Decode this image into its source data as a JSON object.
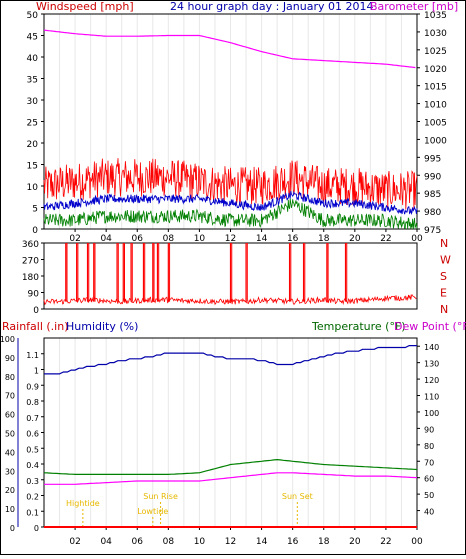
{
  "colors": {
    "wind": "#ff0000",
    "gust": "#ff0000",
    "avg_wind": "#0000cc",
    "min_wind": "#008000",
    "barometer": "#ff00ff",
    "direction": "#ff0000",
    "rain": "#ff0000",
    "humidity": "#0000aa",
    "temperature": "#008000",
    "dewpoint": "#ff00ff",
    "sun": "#e6b800",
    "tide": "#e6b800",
    "axis_text": "#000000"
  },
  "chart_data": [
    {
      "type": "line",
      "name": "wind-barometer",
      "title": "24 hour graph day : January 01 2014",
      "ylabel_left": "Windspeed [mph]",
      "ylabel_right": "Barometer [mb]",
      "x_ticks": [
        "02",
        "04",
        "06",
        "08",
        "10",
        "12",
        "14",
        "16",
        "18",
        "20",
        "22",
        "00"
      ],
      "left_ticks": [
        0,
        5,
        10,
        15,
        20,
        25,
        30,
        35,
        40,
        45,
        50
      ],
      "right_ticks": [
        975,
        980,
        985,
        990,
        995,
        1000,
        1005,
        1010,
        1015,
        1020,
        1025,
        1030,
        1035
      ],
      "left_ylim": [
        0,
        50
      ],
      "right_ylim": [
        975,
        1035
      ],
      "series": [
        {
          "axis": "right",
          "x": [
            0,
            2,
            4,
            6,
            8,
            10,
            12,
            14,
            16,
            18,
            20,
            22,
            24
          ],
          "values": [
            1030.5,
            1029.5,
            1028.8,
            1028.8,
            1029.0,
            1029.0,
            1027.0,
            1024.5,
            1022.5,
            1022.0,
            1021.5,
            1021.0,
            1020.0
          ]
        },
        {
          "axis": "left",
          "x": [
            0,
            2,
            4,
            6,
            8,
            10,
            12,
            14,
            16,
            18,
            20,
            22,
            24
          ],
          "values": [
            10,
            11,
            12,
            12,
            12,
            11,
            10,
            10,
            12,
            10,
            10,
            9,
            9
          ]
        },
        {
          "axis": "left",
          "x": [
            0,
            2,
            4,
            6,
            8,
            10,
            12,
            14,
            16,
            18,
            20,
            22,
            24
          ],
          "values": [
            5,
            6,
            7,
            7,
            7,
            7,
            6,
            5,
            8,
            6,
            6,
            5,
            4
          ]
        },
        {
          "axis": "left",
          "x": [
            0,
            2,
            4,
            6,
            8,
            10,
            12,
            14,
            16,
            18,
            20,
            22,
            24
          ],
          "values": [
            2,
            2,
            3,
            3,
            3,
            3,
            2,
            2,
            6,
            2,
            2,
            2,
            1
          ]
        }
      ]
    },
    {
      "type": "line",
      "name": "wind-direction",
      "y_ticks": [
        0,
        90,
        180,
        270,
        360
      ],
      "compass": [
        "N",
        "W",
        "S",
        "E",
        "N"
      ],
      "ylim": [
        0,
        360
      ],
      "x": [
        0,
        1,
        2,
        3,
        4,
        5,
        6,
        7,
        8,
        9,
        10,
        11,
        12,
        13,
        14,
        15,
        16,
        17,
        18,
        19,
        20,
        21,
        22,
        23,
        24
      ],
      "values": [
        40,
        40,
        45,
        50,
        45,
        40,
        45,
        50,
        50,
        45,
        45,
        40,
        40,
        40,
        50,
        45,
        40,
        45,
        50,
        40,
        45,
        50,
        60,
        60,
        65
      ],
      "spike_hours": [
        1.4,
        2.1,
        2.8,
        3.2,
        4.7,
        5.1,
        5.6,
        6.4,
        7.0,
        7.3,
        8.0,
        12.0,
        13.0,
        15.8,
        16.7,
        18.2,
        19.4
      ]
    },
    {
      "type": "line",
      "name": "rain-humidity-temperature",
      "ylabel_rain": "Rainfall (.in)",
      "ylabel_humidity": "Humidity (%)",
      "ylabel_temperature": "Temperature (°F)",
      "ylabel_dewpoint": "Dew Point (°F)",
      "x_ticks": [
        "02",
        "04",
        "06",
        "08",
        "10",
        "12",
        "14",
        "16",
        "18",
        "20",
        "22",
        "00"
      ],
      "humidity_ticks": [
        0,
        10,
        20,
        30,
        40,
        50,
        60,
        70,
        80,
        90,
        100
      ],
      "rain_ticks": [
        0,
        0.1,
        0.2,
        0.3,
        0.4,
        0.5,
        0.6,
        0.7,
        0.8,
        0.9,
        1,
        1.1
      ],
      "temp_ticks": [
        40,
        50,
        60,
        70,
        80,
        90,
        100,
        110,
        120,
        130,
        140
      ],
      "humidity_ylim": [
        0,
        100
      ],
      "rain_ylim": [
        0,
        1.2
      ],
      "temp_ylim": [
        30,
        145
      ],
      "series": [
        {
          "axis": "humidity",
          "x": [
            0,
            1,
            2,
            3,
            4,
            5,
            6,
            7,
            8,
            9,
            10,
            11,
            12,
            13,
            14,
            15,
            16,
            17,
            18,
            19,
            20,
            21,
            22,
            23,
            24
          ],
          "values": [
            81,
            81,
            83,
            85,
            86,
            88,
            89,
            90,
            92,
            92,
            92,
            90,
            89,
            89,
            88,
            86,
            86,
            88,
            90,
            92,
            93,
            94,
            95,
            95,
            96
          ]
        },
        {
          "axis": "temp",
          "x": [
            0,
            2,
            4,
            6,
            8,
            10,
            12,
            14,
            15,
            16,
            18,
            20,
            22,
            24
          ],
          "values": [
            63,
            62,
            62,
            62,
            62,
            63,
            68,
            70,
            71,
            70,
            68,
            67,
            66,
            65
          ]
        },
        {
          "axis": "temp",
          "x": [
            0,
            2,
            4,
            6,
            8,
            10,
            12,
            14,
            15,
            16,
            18,
            20,
            22,
            24
          ],
          "values": [
            56,
            56,
            57,
            58,
            58,
            58,
            60,
            62,
            63,
            63,
            62,
            61,
            61,
            60
          ]
        },
        {
          "axis": "rain",
          "x": [
            0,
            24
          ],
          "values": [
            0,
            0
          ]
        }
      ],
      "annotations": {
        "high_tide": "Hightide",
        "low_tide": "Lowtide",
        "sun_rise": "Sun Rise",
        "sun_set": "Sun Set"
      },
      "annotation_hours": {
        "high_tide": 2.5,
        "low_tide": 7.0,
        "sun_rise": 7.5,
        "sun_set": 16.3
      }
    }
  ]
}
